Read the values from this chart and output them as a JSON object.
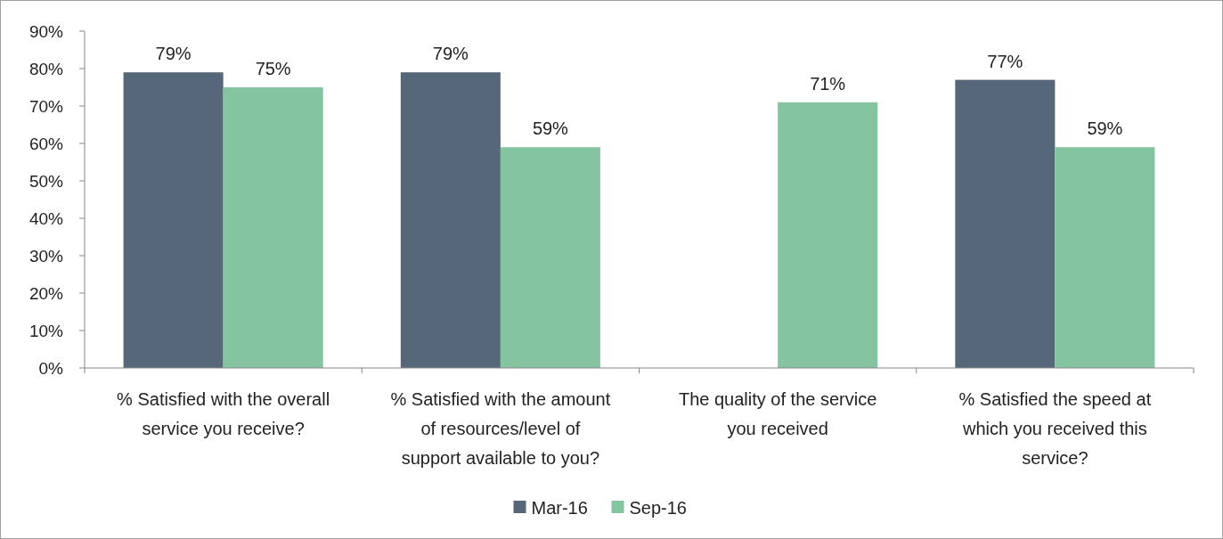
{
  "chart_data": {
    "type": "bar",
    "categories": [
      "% Satisfied with the overall service you receive?",
      "% Satisfied with the amount of resources/level of support available to you?",
      "The quality of the service you received",
      "% Satisfied the speed at which you received this service?"
    ],
    "series": [
      {
        "name": "Mar-16",
        "color": "#56677a",
        "values": [
          79,
          79,
          null,
          77
        ],
        "value_labels": [
          "79%",
          "79%",
          null,
          "77%"
        ]
      },
      {
        "name": "Sep-16",
        "color": "#85c4a0",
        "values": [
          75,
          59,
          71,
          59
        ],
        "value_labels": [
          "75%",
          "59%",
          "71%",
          "59%"
        ]
      }
    ],
    "ylim": [
      0,
      90
    ],
    "yticks": [
      {
        "value": 0,
        "label": "0%"
      },
      {
        "value": 10,
        "label": "10%"
      },
      {
        "value": 20,
        "label": "20%"
      },
      {
        "value": 30,
        "label": "30%"
      },
      {
        "value": 40,
        "label": "40%"
      },
      {
        "value": 50,
        "label": "50%"
      },
      {
        "value": 60,
        "label": "60%"
      },
      {
        "value": 70,
        "label": "70%"
      },
      {
        "value": 80,
        "label": "80%"
      },
      {
        "value": 90,
        "label": "90%"
      }
    ],
    "grid": false,
    "legend": "bottom"
  }
}
